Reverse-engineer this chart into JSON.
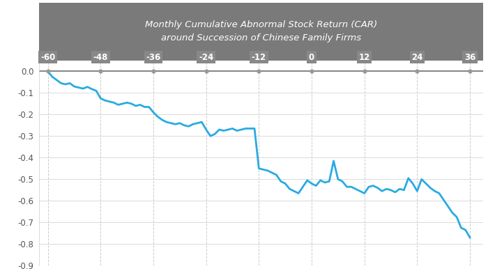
{
  "title_line1": "Monthly Cumulative Abnormal Stock Return (CAR)",
  "title_line2": "around Succession of Chinese Family Firms",
  "title_bg_color": "#7a7a7a",
  "title_text_color": "#ffffff",
  "line_color": "#29ABE2",
  "line_width": 2.0,
  "background_color": "#ffffff",
  "grid_color": "#cccccc",
  "tick_label_bg": "#888888",
  "tick_label_color": "#ffffff",
  "axis_line_color": "#888888",
  "dot_color": "#999999",
  "x_ticks": [
    -60,
    -48,
    -36,
    -24,
    -12,
    0,
    12,
    24,
    36
  ],
  "ylim": [
    -0.9,
    0.05
  ],
  "yticks": [
    0.0,
    -0.1,
    -0.2,
    -0.3,
    -0.4,
    -0.5,
    -0.6,
    -0.7,
    -0.8,
    -0.9
  ],
  "x_values": [
    -60,
    -59,
    -58,
    -57,
    -56,
    -55,
    -54,
    -53,
    -52,
    -51,
    -50,
    -49,
    -48,
    -47,
    -46,
    -45,
    -44,
    -43,
    -42,
    -41,
    -40,
    -39,
    -38,
    -37,
    -36,
    -35,
    -34,
    -33,
    -32,
    -31,
    -30,
    -29,
    -28,
    -27,
    -26,
    -25,
    -24,
    -23,
    -22,
    -21,
    -20,
    -19,
    -18,
    -17,
    -16,
    -15,
    -14,
    -13,
    -12,
    -11,
    -10,
    -9,
    -8,
    -7,
    -6,
    -5,
    -4,
    -3,
    -2,
    -1,
    0,
    1,
    2,
    3,
    4,
    5,
    6,
    7,
    8,
    9,
    10,
    11,
    12,
    13,
    14,
    15,
    16,
    17,
    18,
    19,
    20,
    21,
    22,
    23,
    24,
    25,
    26,
    27,
    28,
    29,
    30,
    31,
    32,
    33,
    34,
    35,
    36
  ],
  "y_values": [
    0.0,
    -0.025,
    -0.04,
    -0.055,
    -0.06,
    -0.055,
    -0.07,
    -0.075,
    -0.08,
    -0.072,
    -0.082,
    -0.09,
    -0.125,
    -0.135,
    -0.14,
    -0.145,
    -0.155,
    -0.15,
    -0.145,
    -0.15,
    -0.16,
    -0.155,
    -0.165,
    -0.165,
    -0.19,
    -0.21,
    -0.225,
    -0.235,
    -0.24,
    -0.245,
    -0.24,
    -0.25,
    -0.255,
    -0.245,
    -0.24,
    -0.235,
    -0.27,
    -0.3,
    -0.29,
    -0.27,
    -0.275,
    -0.27,
    -0.265,
    -0.275,
    -0.27,
    -0.265,
    -0.265,
    -0.265,
    -0.45,
    -0.455,
    -0.46,
    -0.47,
    -0.48,
    -0.51,
    -0.52,
    -0.545,
    -0.555,
    -0.565,
    -0.535,
    -0.505,
    -0.52,
    -0.53,
    -0.505,
    -0.515,
    -0.51,
    -0.415,
    -0.5,
    -0.51,
    -0.535,
    -0.535,
    -0.545,
    -0.555,
    -0.565,
    -0.535,
    -0.53,
    -0.54,
    -0.555,
    -0.545,
    -0.55,
    -0.56,
    -0.545,
    -0.55,
    -0.495,
    -0.52,
    -0.555,
    -0.5,
    -0.52,
    -0.54,
    -0.555,
    -0.565,
    -0.595,
    -0.625,
    -0.655,
    -0.675,
    -0.725,
    -0.735,
    -0.77
  ]
}
